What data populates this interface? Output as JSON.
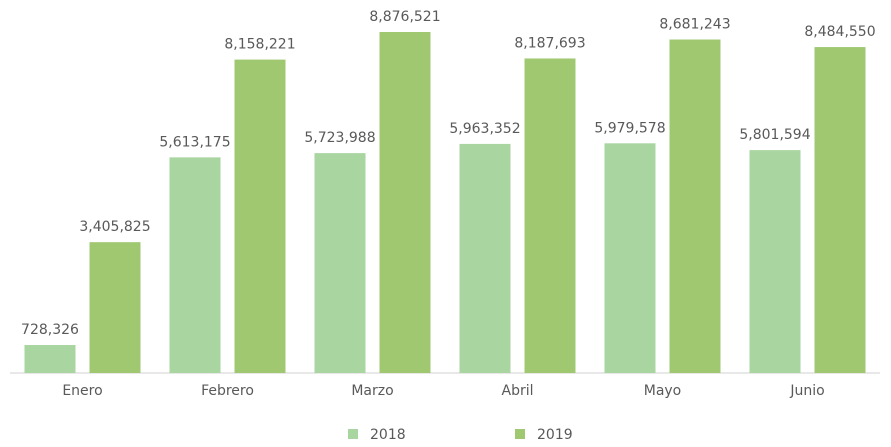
{
  "chart_data": {
    "type": "bar",
    "categories": [
      "Enero",
      "Febrero",
      "Marzo",
      "Abril",
      "Mayo",
      "Junio"
    ],
    "series": [
      {
        "name": "2018",
        "color": "#a9d5a0",
        "values": [
          728326,
          5613175,
          5723988,
          5963352,
          5979578,
          5801594
        ],
        "value_labels": [
          "728,326",
          "5,613,175",
          "5,723,988",
          "5,963,352",
          "5,979,578",
          "5,801,594"
        ]
      },
      {
        "name": "2019",
        "color": "#9fc871",
        "values": [
          3405825,
          8158221,
          8876521,
          8187693,
          8681243,
          8484550
        ],
        "value_labels": [
          "3,405,825",
          "8,158,221",
          "8,876,521",
          "8,187,693",
          "8,681,243",
          "8,484,550"
        ]
      }
    ],
    "legend": "bottom"
  }
}
